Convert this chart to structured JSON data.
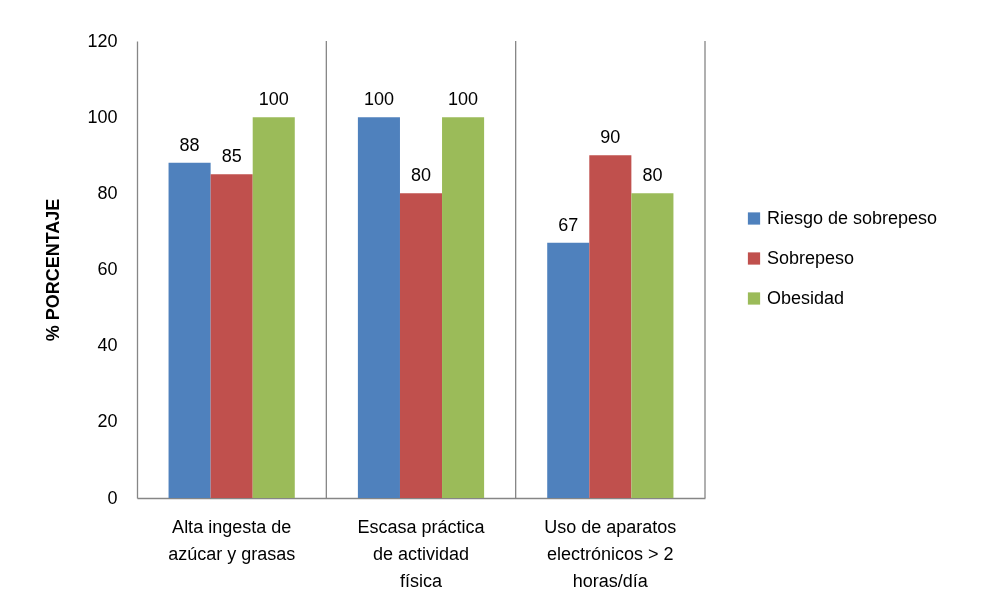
{
  "chart_data": {
    "type": "bar",
    "ylabel": "% PORCENTAJE",
    "categories": [
      "Alta ingesta de azúcar y grasas",
      "Escasa práctica de actividad física",
      "Uso de aparatos electrónicos > 2 horas/día"
    ],
    "series": [
      {
        "name": "Riesgo de sobrepeso",
        "color": "#4f81bd",
        "values": [
          88,
          100,
          67
        ]
      },
      {
        "name": "Sobrepeso",
        "color": "#c0504d",
        "values": [
          85,
          80,
          90
        ]
      },
      {
        "name": "Obesidad",
        "color": "#9bbb59",
        "values": [
          100,
          100,
          80
        ]
      }
    ],
    "ylim": [
      0,
      120
    ],
    "yticks": [
      0,
      20,
      40,
      60,
      80,
      100,
      120
    ],
    "grid": "x",
    "legend": "right",
    "data_labels": true
  }
}
